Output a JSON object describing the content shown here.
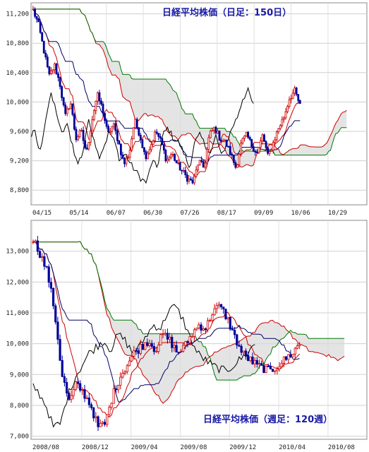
{
  "chart_data": [
    {
      "type": "candlestick",
      "title": "日経平均株価（日足：150日）",
      "ylim": [
        8600,
        11350
      ],
      "yticks": [
        "11,200",
        "10,800",
        "10,400",
        "10,000",
        "9,600",
        "9,200",
        "8,800"
      ],
      "ytick_values": [
        11200,
        10800,
        10400,
        10000,
        9600,
        9200,
        8800
      ],
      "xticks": [
        "04/15",
        "05/14",
        "06/07",
        "06/30",
        "07/26",
        "08/17",
        "09/09",
        "10/06",
        "10/29"
      ],
      "grid": true,
      "price_anchors": [
        11250,
        11050,
        10700,
        10350,
        10500,
        10250,
        9800,
        10000,
        9500,
        9600,
        9300,
        9750,
        10100,
        9900,
        9550,
        9700,
        9450,
        9150,
        9300,
        9750,
        9550,
        9250,
        9400,
        9600,
        9450,
        9200,
        9300,
        9150,
        9050,
        8950,
        8900,
        9200,
        9100,
        9550,
        9650,
        9500,
        9450,
        9300,
        9100,
        9450,
        9550,
        9400,
        9300,
        9550,
        9250,
        9450,
        9650,
        9800,
        10050,
        10150,
        9950
      ]
    },
    {
      "type": "candlestick",
      "title": "日経平均株価（週足：120週）",
      "ylim": [
        6900,
        14000
      ],
      "yticks": [
        "13,000",
        "12,000",
        "11,000",
        "10,000",
        "9,000",
        "8,000",
        "7,000"
      ],
      "ytick_values": [
        13000,
        12000,
        11000,
        10000,
        9000,
        8000,
        7000
      ],
      "xticks": [
        "2008/08",
        "2008/12",
        "2009/04",
        "2009/08",
        "2009/12",
        "2010/04",
        "2010/08"
      ],
      "grid": true,
      "price_anchors": [
        13400,
        12900,
        12300,
        11000,
        9000,
        8100,
        8700,
        8400,
        8000,
        7300,
        7400,
        8300,
        8900,
        9300,
        9700,
        9900,
        10100,
        9800,
        10300,
        10100,
        9700,
        9900,
        10300,
        10600,
        10500,
        11100,
        11200,
        10800,
        10200,
        9700,
        9500,
        9300,
        9200,
        9100,
        9300,
        9500,
        9700,
        10000
      ]
    }
  ]
}
